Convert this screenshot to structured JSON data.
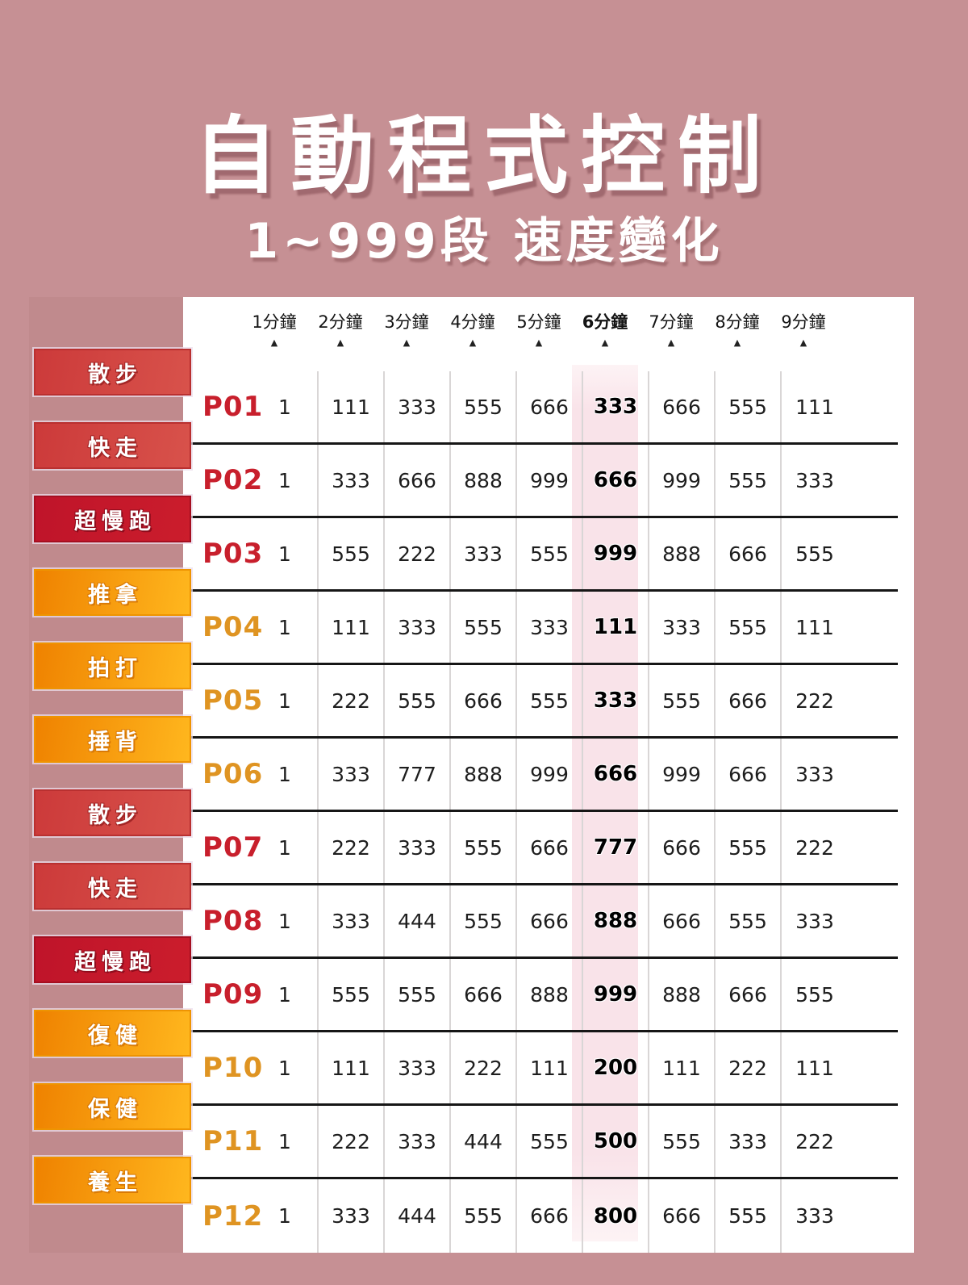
{
  "poster": {
    "title": "自動程式控制",
    "subtitle": "1~999段  速度變化",
    "background_color": "#c69094"
  },
  "table": {
    "minute_columns": [
      "1分鐘",
      "2分鐘",
      "3分鐘",
      "4分鐘",
      "5分鐘",
      "6分鐘",
      "7分鐘",
      "8分鐘",
      "9分鐘"
    ],
    "bold_column_index": 5,
    "bold_column_label": "6分鐘",
    "marker_icon": "▲",
    "highlight_color": "#f9e3e9",
    "programs": [
      {
        "id": "P01",
        "category": "散步",
        "family": "red",
        "values": [
          "1",
          "111",
          "333",
          "555",
          "666",
          "333",
          "666",
          "555",
          "111"
        ]
      },
      {
        "id": "P02",
        "category": "快走",
        "family": "red",
        "values": [
          "1",
          "333",
          "666",
          "888",
          "999",
          "666",
          "999",
          "555",
          "333"
        ]
      },
      {
        "id": "P03",
        "category": "超慢跑",
        "family": "dark-red",
        "values": [
          "1",
          "555",
          "222",
          "333",
          "555",
          "999",
          "888",
          "666",
          "555"
        ]
      },
      {
        "id": "P04",
        "category": "推拿",
        "family": "orange",
        "values": [
          "1",
          "111",
          "333",
          "555",
          "333",
          "111",
          "333",
          "555",
          "111"
        ]
      },
      {
        "id": "P05",
        "category": "拍打",
        "family": "orange",
        "values": [
          "1",
          "222",
          "555",
          "666",
          "555",
          "333",
          "555",
          "666",
          "222"
        ]
      },
      {
        "id": "P06",
        "category": "捶背",
        "family": "orange",
        "values": [
          "1",
          "333",
          "777",
          "888",
          "999",
          "666",
          "999",
          "666",
          "333"
        ]
      },
      {
        "id": "P07",
        "category": "散步",
        "family": "red",
        "values": [
          "1",
          "222",
          "333",
          "555",
          "666",
          "777",
          "666",
          "555",
          "222"
        ]
      },
      {
        "id": "P08",
        "category": "快走",
        "family": "red",
        "values": [
          "1",
          "333",
          "444",
          "555",
          "666",
          "888",
          "666",
          "555",
          "333"
        ]
      },
      {
        "id": "P09",
        "category": "超慢跑",
        "family": "dark-red",
        "values": [
          "1",
          "555",
          "555",
          "666",
          "888",
          "999",
          "888",
          "666",
          "555"
        ]
      },
      {
        "id": "P10",
        "category": "復健",
        "family": "orange",
        "values": [
          "1",
          "111",
          "333",
          "222",
          "111",
          "200",
          "111",
          "222",
          "111"
        ]
      },
      {
        "id": "P11",
        "category": "保健",
        "family": "orange",
        "values": [
          "1",
          "222",
          "333",
          "444",
          "555",
          "500",
          "555",
          "333",
          "222"
        ]
      },
      {
        "id": "P12",
        "category": "養生",
        "family": "orange",
        "values": [
          "1",
          "333",
          "444",
          "555",
          "666",
          "800",
          "666",
          "555",
          "333"
        ]
      }
    ],
    "colors": {
      "chip_red": "#cc3a3a",
      "chip_dark_red": "#bf142a",
      "chip_orange_start": "#ef8200",
      "chip_orange_end": "#ffb71e",
      "program_label_red": "#c81f2c",
      "program_label_orange": "#df9422",
      "row_divider": "#161616",
      "column_divider": "#d9d6d6"
    }
  }
}
